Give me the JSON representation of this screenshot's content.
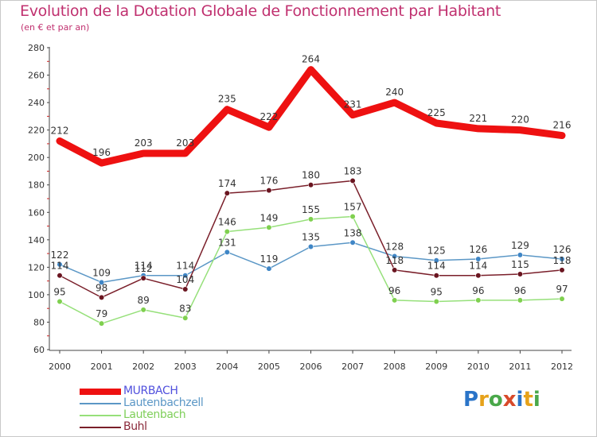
{
  "header": {
    "title": "Evolution de la Dotation Globale de Fonctionnement par Habitant",
    "subtitle": "(en € et par an)"
  },
  "logo": {
    "text": "Proxiti"
  },
  "chart_data": {
    "type": "line",
    "title": "Evolution de la Dotation Globale de Fonctionnement par Habitant",
    "subtitle": "(en € et par an)",
    "xlabel": "",
    "ylabel": "",
    "categories": [
      "2000",
      "2001",
      "2002",
      "2003",
      "2004",
      "2005",
      "2006",
      "2007",
      "2008",
      "2009",
      "2010",
      "2011",
      "2012"
    ],
    "ylim": [
      60,
      280
    ],
    "yticks": [
      60,
      80,
      100,
      120,
      140,
      160,
      180,
      200,
      220,
      240,
      260,
      280
    ],
    "grid": false,
    "legend_position": "bottom-left",
    "series": [
      {
        "name": "MURBACH",
        "color": "#ee1111",
        "label_color": "#5050dd",
        "values": [
          212,
          196,
          203,
          203,
          235,
          222,
          264,
          231,
          240,
          225,
          221,
          220,
          216
        ]
      },
      {
        "name": "Lautenbachzell",
        "color": "#5b97c6",
        "dot_color": "#3f86c6",
        "label_color": "#5b97c6",
        "values": [
          122,
          109,
          114,
          114,
          131,
          119,
          135,
          138,
          128,
          125,
          126,
          129,
          126
        ]
      },
      {
        "name": "Lautenbach",
        "color": "#96e07a",
        "dot_color": "#7fd04f",
        "label_color": "#7fcf5a",
        "values": [
          95,
          79,
          89,
          83,
          146,
          149,
          155,
          157,
          96,
          95,
          96,
          96,
          97
        ]
      },
      {
        "name": "Buhl",
        "color": "#7a1f2a",
        "dot_color": "#6a1520",
        "label_color": "#8a2a3a",
        "values": [
          114,
          98,
          112,
          104,
          174,
          176,
          180,
          183,
          118,
          114,
          114,
          115,
          118
        ]
      }
    ]
  }
}
